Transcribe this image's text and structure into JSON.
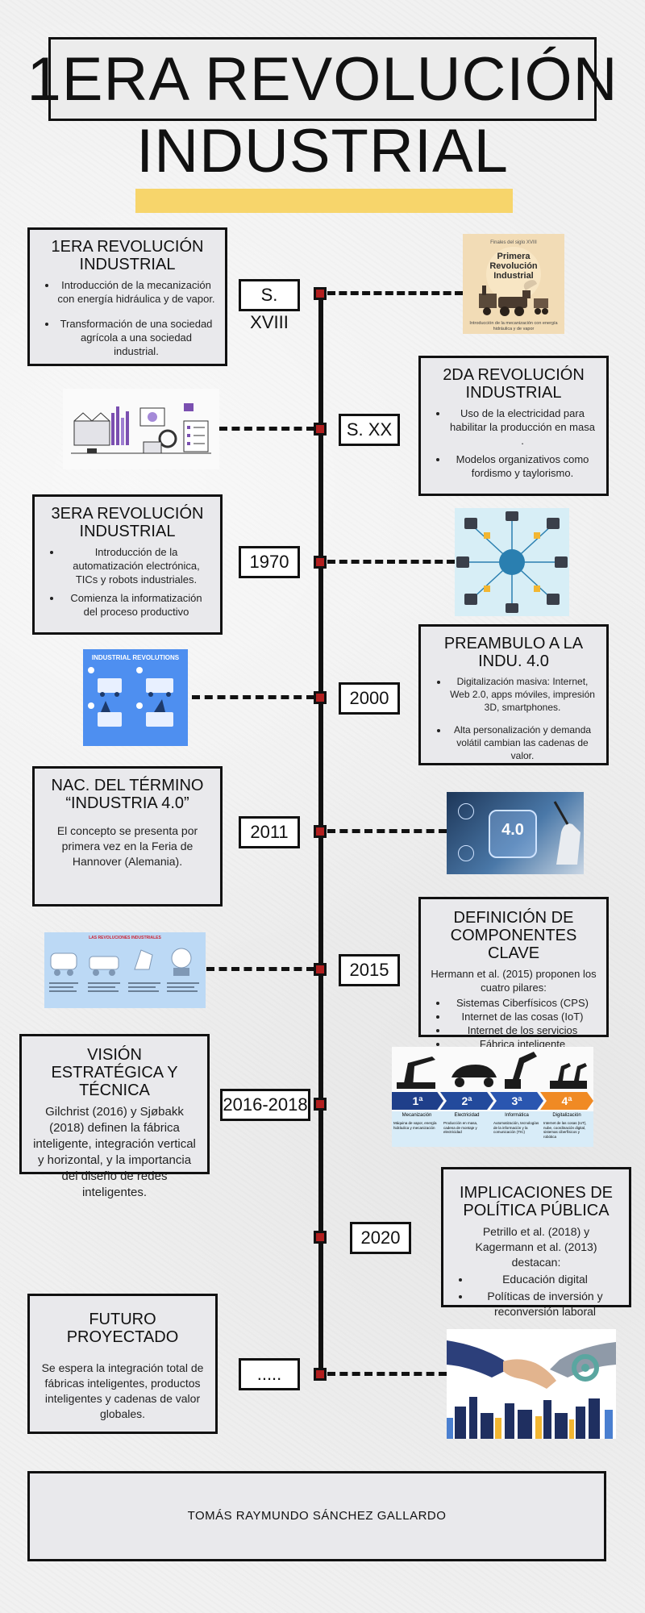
{
  "title": {
    "line1": "1ERA REVOLUCIÓN",
    "line2": "INDUSTRIAL"
  },
  "colors": {
    "accent_yellow": "#f7d56b",
    "node_red": "#b21f1f",
    "card_bg": "#e9e9ec"
  },
  "timeline": [
    {
      "date": "S. XVIII",
      "card": {
        "title": "1ERA REVOLUCIÓN INDUSTRIAL",
        "bullets": [
          "Introducción de la mecanización con energía hidráulica y de vapor.",
          "Transformación de una sociedad agrícola a una sociedad industrial."
        ]
      },
      "image": {
        "caption_top": "Finales del siglo XVIII",
        "title": "Primera Revolución Industrial",
        "caption_bottom": "Introducción de la mecanización con energía hidráulica y de vapor"
      }
    },
    {
      "date": "S. XX",
      "card": {
        "title": "2DA REVOLUCIÓN INDUSTRIAL",
        "bullets": [
          "Uso de la electricidad para habilitar la producción en masa .",
          "Modelos organizativos como fordismo y taylorismo."
        ]
      },
      "image": {
        "icon": "factory-illustration-icon"
      }
    },
    {
      "date": "1970",
      "card": {
        "title": "3ERA REVOLUCIÓN INDUSTRIAL",
        "bullets": [
          "Introducción de la automatización electrónica, TICs y robots industriales.",
          "Comienza la informatización del proceso productivo"
        ]
      },
      "image": {
        "icon": "automation-network-icon"
      }
    },
    {
      "date": "2000",
      "card": {
        "title": "PREAMBULO A LA INDU. 4.0",
        "bullets": [
          "Digitalización masiva: Internet, Web 2.0, apps móviles, impresión 3D, smartphones.",
          "Alta personalización y demanda volátil cambian las cadenas de valor."
        ]
      },
      "image": {
        "title": "INDUSTRIAL REVOLUTIONS"
      }
    },
    {
      "date": "2011",
      "card": {
        "title": "NAC. DEL TÉRMINO “INDUSTRIA 4.0”",
        "text": "El concepto se presenta por primera vez en la Feria de Hannover (Alemania)."
      },
      "image": {
        "label": "4.0"
      }
    },
    {
      "date": "2015",
      "card": {
        "title": "DEFINICIÓN DE COMPONENTES CLAVE",
        "text": "Hermann et al. (2015) proponen los cuatro pilares:",
        "bullets": [
          "Sistemas Ciberfísicos (CPS)",
          "Internet de las cosas (IoT)",
          "Internet de los servicios",
          "Fábrica inteligente"
        ]
      },
      "image": {
        "title": "LAS REVOLUCIONES INDUSTRIALES"
      }
    },
    {
      "date": "2016-2018",
      "card": {
        "title": "VISIÓN ESTRATÉGICA Y TÉCNICA",
        "text": "Gilchrist (2016) y Sjøbakk (2018) definen la fábrica inteligente, integración vertical y horizontal, y la importancia del diseño de redes inteligentes."
      },
      "image": {
        "stages": [
          {
            "num": "1ª",
            "label": "Mecanización",
            "desc": "Máquina de vapor, energía hidráulica y mecanización"
          },
          {
            "num": "2ª",
            "label": "Electricidad",
            "desc": "Producción en masa, cadena de montaje y electricidad"
          },
          {
            "num": "3ª",
            "label": "Informática",
            "desc": "Automatización, tecnologías de la información y la comunicación (TIC)"
          },
          {
            "num": "4ª",
            "label": "Digitalización",
            "desc": "Internet de las cosas (IoT), nube, coordinación digital, sistemas ciberfísicos y robótica"
          }
        ]
      }
    },
    {
      "date": "2020",
      "card": {
        "title": "IMPLICACIONES DE POLÍTICA PÚBLICA",
        "text": "Petrillo et al. (2018) y Kagermann et al. (2013) destacan:",
        "bullets": [
          "Educación digital",
          "Políticas de inversión y reconversión laboral"
        ]
      }
    },
    {
      "date": ".....",
      "card": {
        "title": "FUTURO PROYECTADO",
        "text": "Se espera la integración total de fábricas inteligentes, productos inteligentes y cadenas de valor globales."
      },
      "image": {
        "icon": "handshake-robot-icon"
      }
    }
  ],
  "footer": {
    "author": "TOMÁS RAYMUNDO SÁNCHEZ GALLARDO"
  }
}
